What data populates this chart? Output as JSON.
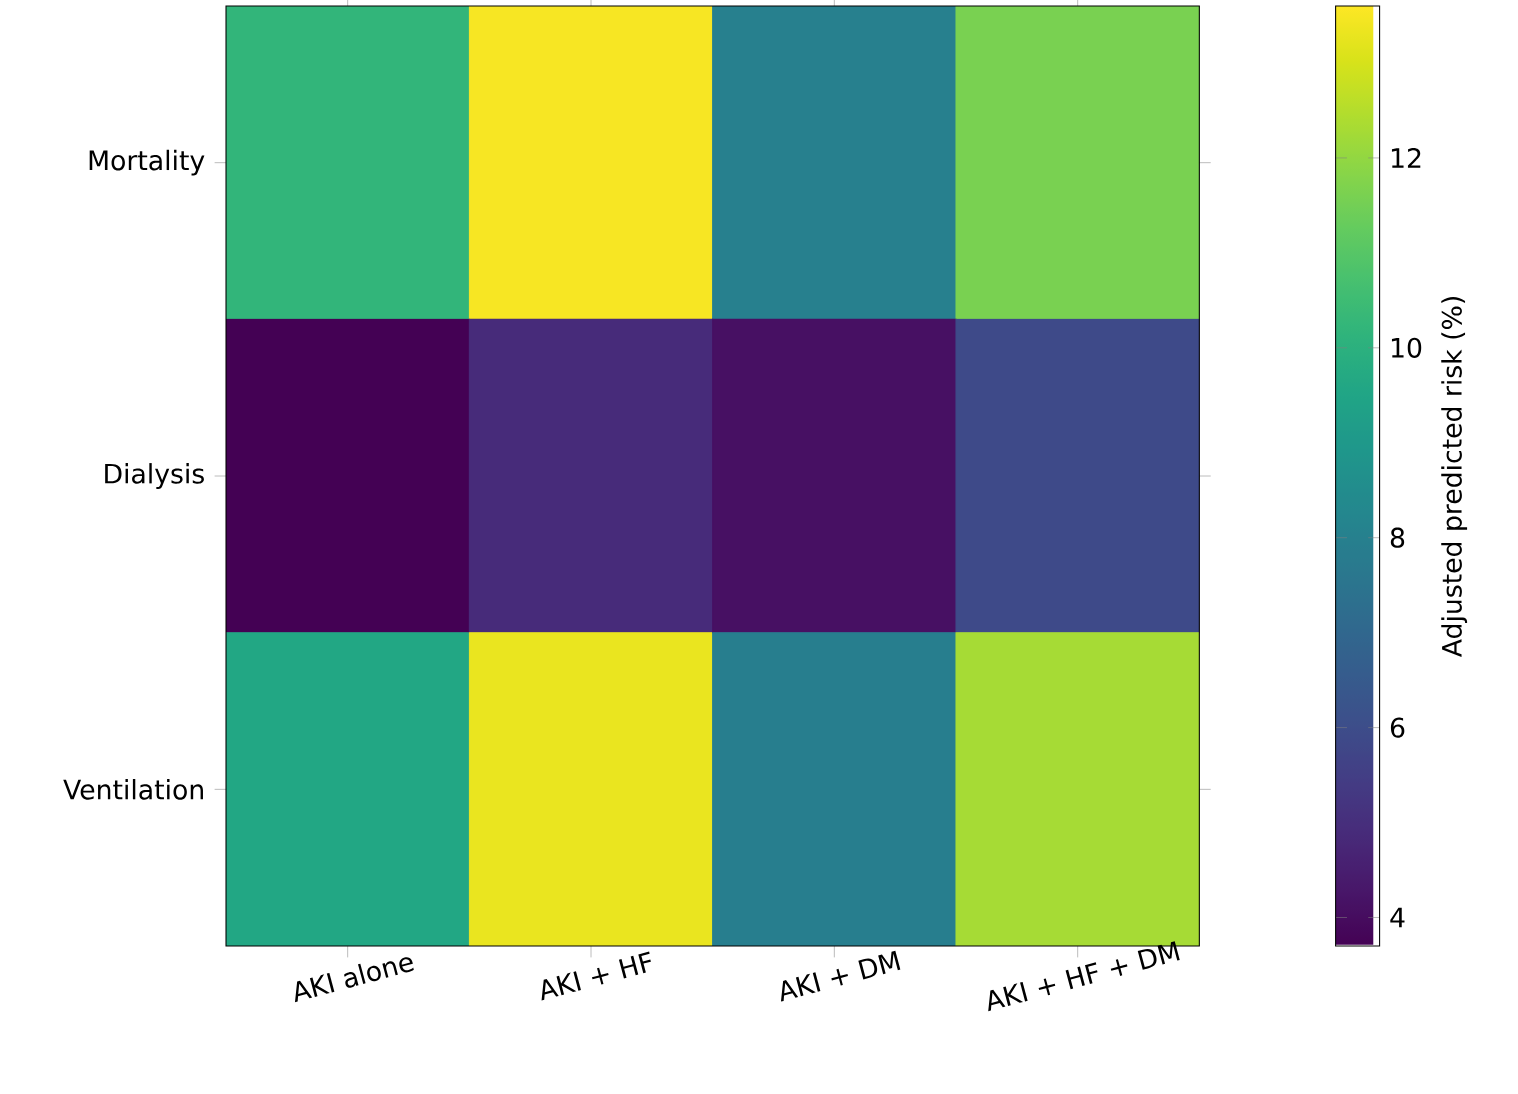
{
  "chart_data": {
    "type": "heatmap",
    "categories": [
      "AKI alone",
      "AKI + HF",
      "AKI + DM",
      "AKI + HF + DM"
    ],
    "y_categories": [
      "Mortality",
      "Dialysis",
      "Ventilation"
    ],
    "cells": [
      [
        10.2,
        13.5,
        8.0,
        11.6
      ],
      [
        3.7,
        4.9,
        4.1,
        5.9
      ],
      [
        9.6,
        13.3,
        7.9,
        12.3
      ]
    ],
    "clim": [
      3.7,
      13.6
    ],
    "cticks": [
      4,
      6,
      8,
      10,
      12
    ],
    "clabel": "Adjusted predicted risk (%)"
  }
}
